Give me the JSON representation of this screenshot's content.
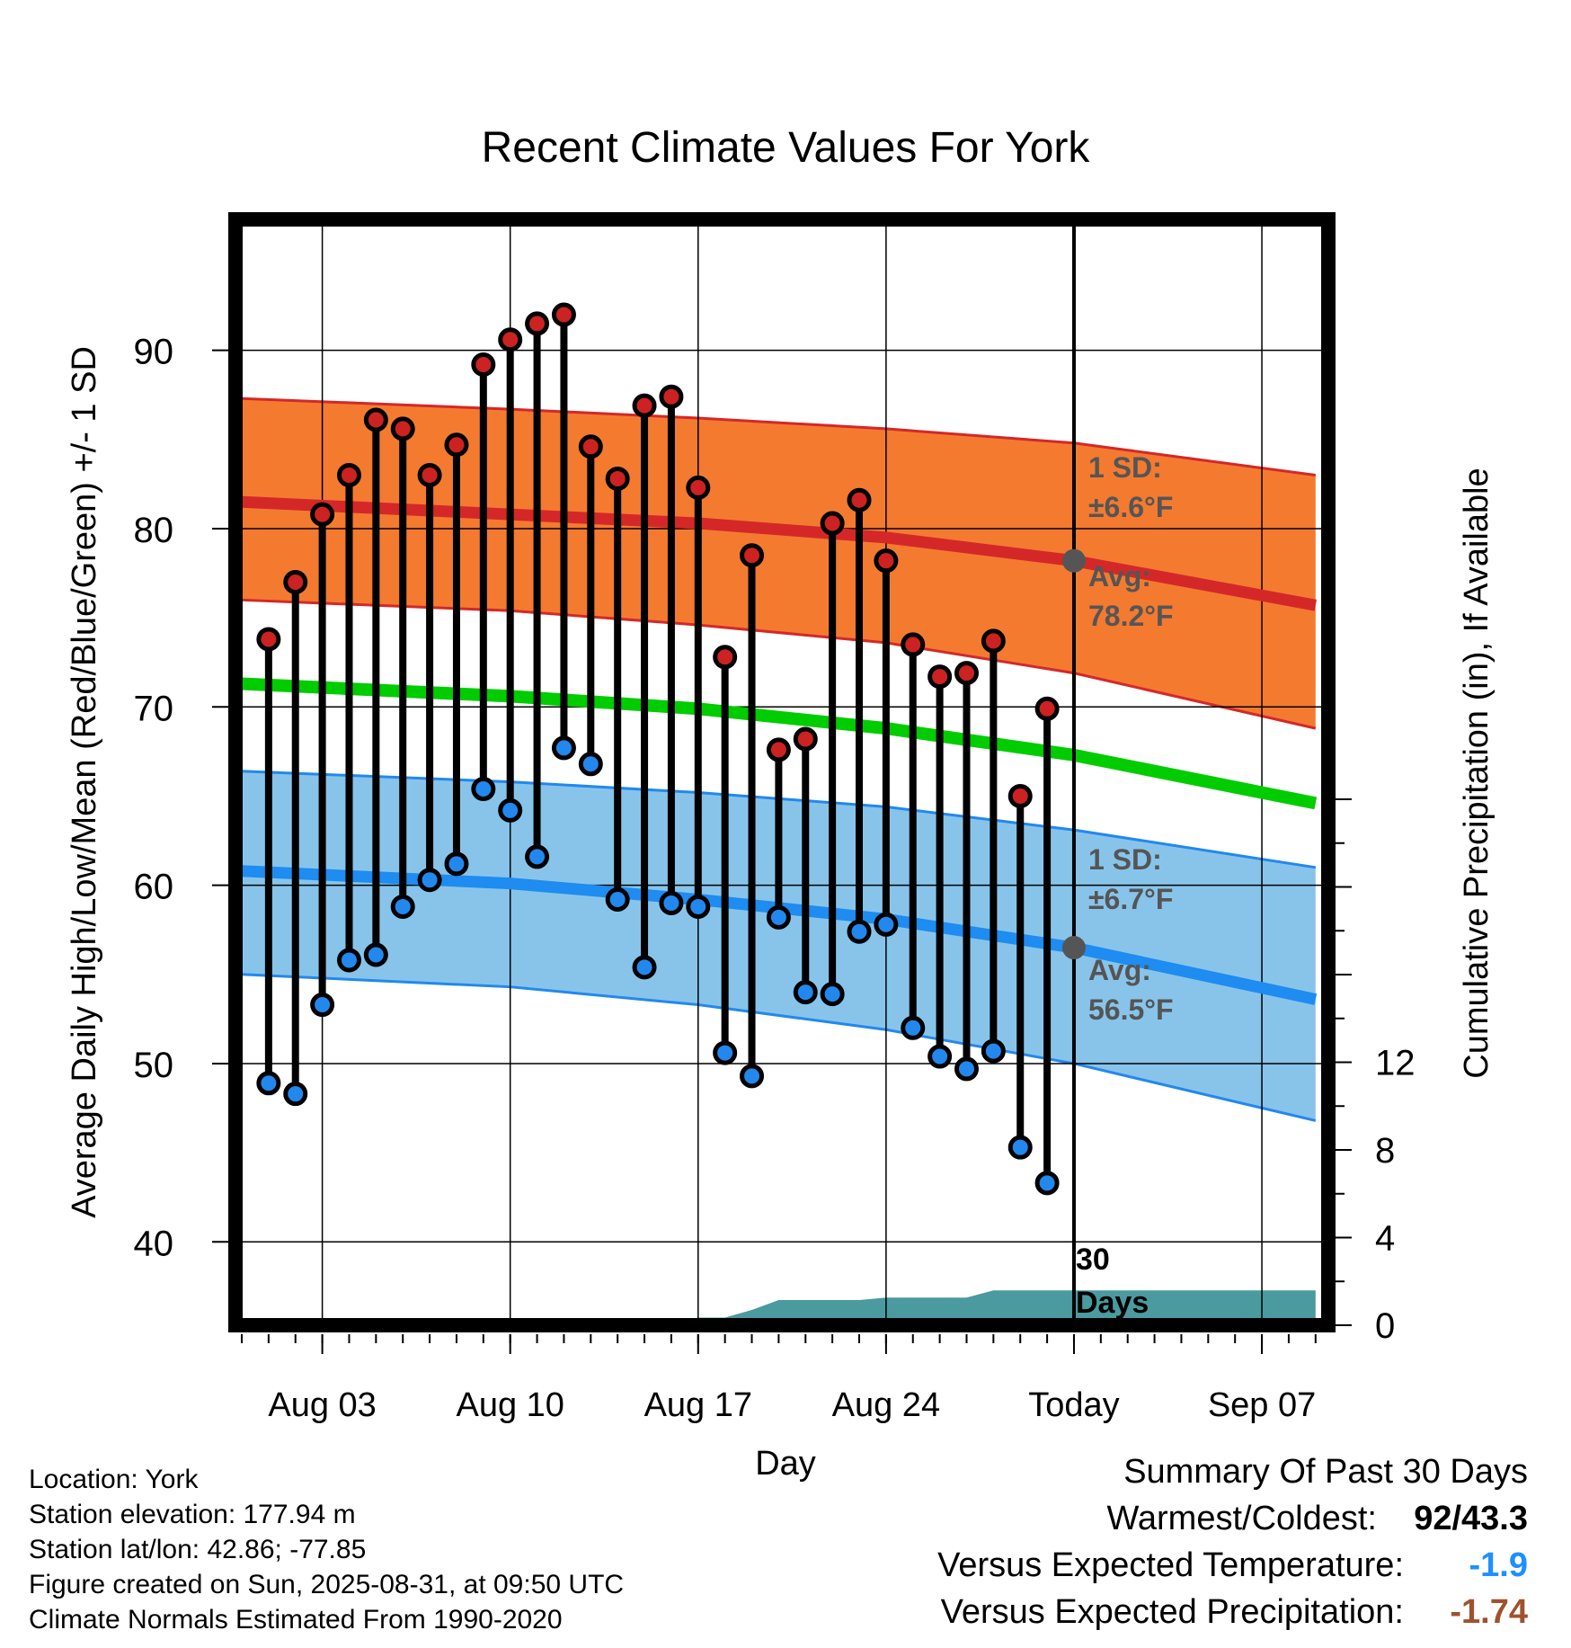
{
  "chart_data": {
    "type": "line",
    "title": "Recent Climate Values For York",
    "xlabel": "Day",
    "ylabel": "Average Daily High/Low/Mean (Red/Blue/Green) +/- 1 SD",
    "y2label": "Cumulative Precipitation (in), If Available",
    "ylim": [
      35,
      97
    ],
    "y2lim": [
      0,
      24
    ],
    "xlim_days": [
      "Jul 31",
      "Sep 09"
    ],
    "x_ticks": [
      "Aug 03",
      "Aug 10",
      "Aug 17",
      "Aug 24",
      "Today",
      "Sep 07"
    ],
    "y_ticks": [
      40,
      50,
      60,
      70,
      80,
      90
    ],
    "y2_ticks": [
      0,
      4,
      8,
      12
    ],
    "grid": true,
    "dates": [
      "Aug 01",
      "Aug 02",
      "Aug 03",
      "Aug 04",
      "Aug 05",
      "Aug 06",
      "Aug 07",
      "Aug 08",
      "Aug 09",
      "Aug 10",
      "Aug 11",
      "Aug 12",
      "Aug 13",
      "Aug 14",
      "Aug 15",
      "Aug 16",
      "Aug 17",
      "Aug 18",
      "Aug 19",
      "Aug 20",
      "Aug 21",
      "Aug 22",
      "Aug 23",
      "Aug 24",
      "Aug 25",
      "Aug 26",
      "Aug 27",
      "Aug 28",
      "Aug 29",
      "Aug 30"
    ],
    "series": [
      {
        "name": "High",
        "color": "#cc2222",
        "values": [
          73.8,
          77.0,
          80.8,
          83.0,
          86.1,
          85.6,
          83.0,
          84.7,
          89.2,
          90.6,
          91.5,
          92.0,
          84.6,
          82.8,
          86.9,
          87.4,
          82.3,
          72.8,
          78.5,
          67.6,
          68.2,
          80.3,
          81.6,
          78.2,
          73.5,
          71.7,
          71.9,
          73.7,
          65.0,
          69.9
        ]
      },
      {
        "name": "Low",
        "color": "#2288ee",
        "values": [
          48.9,
          48.3,
          53.3,
          55.8,
          56.1,
          58.8,
          60.3,
          61.2,
          65.4,
          64.2,
          61.6,
          67.7,
          66.8,
          59.2,
          55.4,
          59.0,
          58.8,
          50.6,
          49.3,
          58.2,
          54.0,
          53.9,
          57.4,
          57.8,
          52.0,
          50.4,
          49.7,
          50.7,
          45.3,
          43.3
        ]
      },
      {
        "name": "Normal High",
        "color": "#cc2222",
        "x": [
          "Jul 31",
          "Aug 10",
          "Aug 17",
          "Aug 24",
          "Aug 31",
          "Sep 09"
        ],
        "values": [
          81.5,
          80.8,
          80.3,
          79.5,
          78.2,
          75.7
        ]
      },
      {
        "name": "Normal High +1 SD",
        "color": "#cc2222",
        "x": [
          "Jul 31",
          "Aug 10",
          "Aug 17",
          "Aug 24",
          "Aug 31",
          "Sep 09"
        ],
        "values": [
          87.3,
          86.7,
          86.2,
          85.6,
          84.8,
          83.0
        ]
      },
      {
        "name": "Normal High -1 SD",
        "color": "#cc2222",
        "x": [
          "Jul 31",
          "Aug 10",
          "Aug 17",
          "Aug 24",
          "Aug 31",
          "Sep 09"
        ],
        "values": [
          76.0,
          75.4,
          74.6,
          73.6,
          71.9,
          68.8
        ]
      },
      {
        "name": "Normal Mean",
        "color": "#00cc00",
        "x": [
          "Jul 31",
          "Aug 10",
          "Aug 17",
          "Aug 24",
          "Aug 31",
          "Sep 09"
        ],
        "values": [
          71.3,
          70.6,
          69.9,
          68.8,
          67.3,
          64.6
        ]
      },
      {
        "name": "Normal Low",
        "color": "#2288ee",
        "x": [
          "Jul 31",
          "Aug 10",
          "Aug 17",
          "Aug 24",
          "Aug 31",
          "Sep 09"
        ],
        "values": [
          60.8,
          60.1,
          59.2,
          58.1,
          56.5,
          53.6
        ]
      },
      {
        "name": "Normal Low +1 SD",
        "color": "#2288ee",
        "x": [
          "Jul 31",
          "Aug 10",
          "Aug 17",
          "Aug 24",
          "Aug 31",
          "Sep 09"
        ],
        "values": [
          66.4,
          65.8,
          65.2,
          64.4,
          63.1,
          61.0
        ]
      },
      {
        "name": "Normal Low -1 SD",
        "color": "#2288ee",
        "x": [
          "Jul 31",
          "Aug 10",
          "Aug 17",
          "Aug 24",
          "Aug 31",
          "Sep 09"
        ],
        "values": [
          55.0,
          54.3,
          53.3,
          51.9,
          50.0,
          46.8
        ]
      },
      {
        "name": "Cumulative Precipitation",
        "color": "#4a9a9f",
        "axis": "y2",
        "x": [
          "Jul 31",
          "Aug 12",
          "Aug 13",
          "Aug 16",
          "Aug 17",
          "Aug 18",
          "Aug 19",
          "Aug 20",
          "Aug 23",
          "Aug 24",
          "Aug 27",
          "Aug 28",
          "Sep 09"
        ],
        "values": [
          0.0,
          0.0,
          0.08,
          0.08,
          0.35,
          0.35,
          0.7,
          1.15,
          1.15,
          1.26,
          1.26,
          1.59,
          1.59
        ]
      }
    ],
    "annotations": {
      "today_label": "Today",
      "today_date": "Aug 31",
      "high_sd_text": "1 SD:",
      "high_sd_value": "±6.6°F",
      "high_avg_label": "Avg:",
      "high_avg_value": "78.2°F",
      "high_avg_point": 78.2,
      "low_sd_text": "1 SD:",
      "low_sd_value": "±6.7°F",
      "low_avg_label": "Avg:",
      "low_avg_value": "56.5°F",
      "low_avg_point": 56.5,
      "window_count": "30",
      "window_unit": "Days"
    }
  },
  "footer": {
    "location": "Location: York",
    "elevation": "Station elevation: 177.94 m",
    "latlon": "Station lat/lon: 42.86; -77.85",
    "created": "Figure created on Sun, 2025-08-31, at 09:50 UTC",
    "normals": "Climate Normals Estimated From 1990-2020"
  },
  "summary": {
    "title": "Summary Of Past 30 Days",
    "warmest_label": "Warmest/Coldest:",
    "warmest_value": "92/43.3",
    "temp_label": "Versus Expected Temperature:",
    "temp_value": "-1.9",
    "temp_color": "#1e90ff",
    "precip_label": "Versus Expected Precipitation:",
    "precip_value": "-1.74",
    "precip_color": "#a0522d"
  }
}
